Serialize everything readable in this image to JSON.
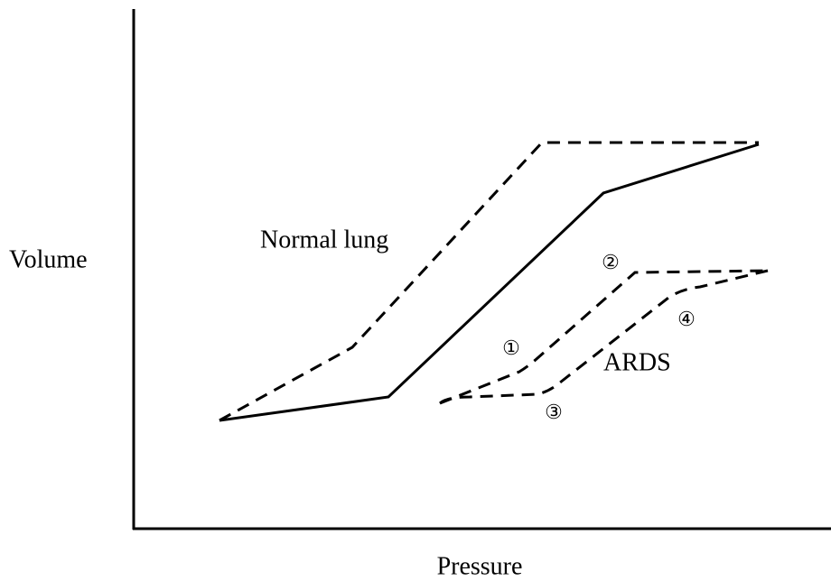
{
  "axes": {
    "y_label": "Volume",
    "x_label": "Pressure"
  },
  "curves": {
    "normal": "Normal lung",
    "ards": "ARDS"
  },
  "markers": [
    "①",
    "②",
    "③",
    "④"
  ]
}
